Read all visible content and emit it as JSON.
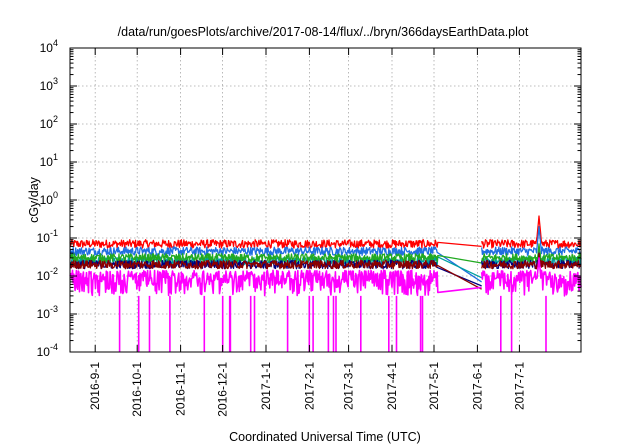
{
  "chart_data": {
    "type": "line",
    "title": "/data/run/goesPlots/archive/2017-08-14/flux/../bryn/366daysEarthData.plot",
    "xlabel": "Coordinated Universal Time (UTC)",
    "ylabel": "cGy/day",
    "yscale": "log",
    "ylim": [
      0.0001,
      10000
    ],
    "xlim": [
      "2016-08-14",
      "2017-08-14"
    ],
    "y_ticks": [
      {
        "base": "10",
        "exp": "-4"
      },
      {
        "base": "10",
        "exp": "-3"
      },
      {
        "base": "10",
        "exp": "-2"
      },
      {
        "base": "10",
        "exp": "-1"
      },
      {
        "base": "10",
        "exp": "0"
      },
      {
        "base": "10",
        "exp": "1"
      },
      {
        "base": "10",
        "exp": "2"
      },
      {
        "base": "10",
        "exp": "3"
      },
      {
        "base": "10",
        "exp": "4"
      }
    ],
    "x_ticks": [
      "2016-9-1",
      "2016-10-1",
      "2016-11-1",
      "2016-12-1",
      "2017-1-1",
      "2017-2-1",
      "2017-3-1",
      "2017-4-1",
      "2017-5-1",
      "2017-6-1",
      "2017-7-1"
    ],
    "grid": true,
    "data_gap": [
      "2017-05-04",
      "2017-06-04"
    ],
    "series": [
      {
        "color": "#ff0000",
        "typical": 0.07,
        "spike": 0.38,
        "gap_value": 0.06
      },
      {
        "color": "#1f6fe0",
        "typical": 0.045,
        "spike": 0.2,
        "gap_value": 0.007
      },
      {
        "color": "#00a0a0",
        "typical": 0.025,
        "spike": 0.06,
        "gap_value": 0.009
      },
      {
        "color": "#22aa22",
        "typical": 0.03,
        "spike": 0.07,
        "gap_value": 0.022
      },
      {
        "color": "#000080",
        "typical": 0.02,
        "spike": 0.04,
        "gap_value": 0.0055
      },
      {
        "color": "#8b0000",
        "typical": 0.02,
        "spike": 0.04,
        "gap_value": 0.0045
      },
      {
        "color": "#ff00ff",
        "typical": 0.01,
        "min": 0.003,
        "spike": 0.03,
        "gap_value": 0.005
      }
    ],
    "spike_date": "2017-07-15"
  }
}
